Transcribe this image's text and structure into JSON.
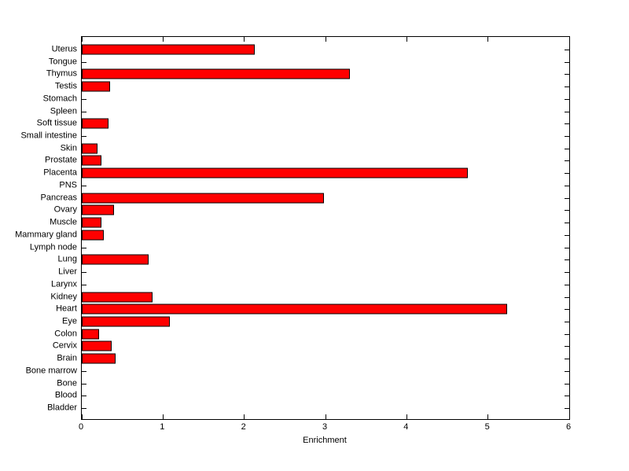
{
  "figure": {
    "background_color": "#FFFFFF",
    "axis_color": "#000000"
  },
  "chart_data": {
    "type": "bar",
    "orientation": "horizontal",
    "title": "",
    "xlabel": "Enrichment",
    "ylabel": "",
    "xlim": [
      0,
      6
    ],
    "xtick_labels": [
      "0",
      "1",
      "2",
      "3",
      "4",
      "5",
      "6"
    ],
    "grid": false,
    "legend": null,
    "bar_color": "#FF0000",
    "bar_edge_color": "#000000",
    "category_order": "top-to-bottom",
    "categories": [
      "Uterus",
      "Tongue",
      "Thymus",
      "Testis",
      "Stomach",
      "Spleen",
      "Soft tissue",
      "Small intestine",
      "Skin",
      "Prostate",
      "Placenta",
      "PNS",
      "Pancreas",
      "Ovary",
      "Muscle",
      "Mammary gland",
      "Lymph node",
      "Lung",
      "Liver",
      "Larynx",
      "Kidney",
      "Heart",
      "Eye",
      "Colon",
      "Cervix",
      "Brain",
      "Bone marrow",
      "Bone",
      "Blood",
      "Bladder"
    ],
    "values": [
      2.13,
      0,
      3.3,
      0.35,
      0,
      0,
      0.33,
      0,
      0.19,
      0.24,
      4.75,
      0,
      2.98,
      0.4,
      0.24,
      0.27,
      0,
      0.82,
      0,
      0,
      0.87,
      5.24,
      1.08,
      0.21,
      0.37,
      0.42,
      0,
      0,
      0,
      0
    ]
  }
}
